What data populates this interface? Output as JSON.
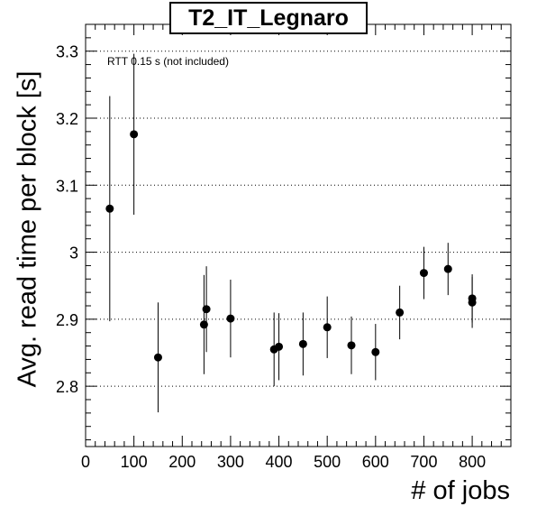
{
  "chart_data": {
    "type": "scatter",
    "title": "T2_IT_Legnaro",
    "xlabel": "# of jobs",
    "ylabel": "Avg. read time per block [s]",
    "annotation": "RTT 0.15 s (not included)",
    "xlim": [
      0,
      880
    ],
    "ylim": [
      2.71,
      3.34
    ],
    "xticks": [
      0,
      100,
      200,
      300,
      400,
      500,
      600,
      700,
      800
    ],
    "yticks": [
      2.8,
      2.9,
      3.0,
      3.1,
      3.2,
      3.3
    ],
    "ytick_labels": [
      "2.8",
      "2.9",
      "3",
      "3.1",
      "3.2",
      "3.3"
    ],
    "grid": "horizontal dotted",
    "marker_color": "#000000",
    "points": [
      {
        "x": 50,
        "y": 3.065,
        "yerr": 0.168
      },
      {
        "x": 100,
        "y": 3.176,
        "yerr": 0.12
      },
      {
        "x": 150,
        "y": 2.843,
        "yerr": 0.082
      },
      {
        "x": 245,
        "y": 2.892,
        "yerr": 0.074
      },
      {
        "x": 250,
        "y": 2.915,
        "yerr": 0.064
      },
      {
        "x": 300,
        "y": 2.901,
        "yerr": 0.058
      },
      {
        "x": 390,
        "y": 2.855,
        "yerr": 0.055
      },
      {
        "x": 400,
        "y": 2.859,
        "yerr": 0.05
      },
      {
        "x": 450,
        "y": 2.863,
        "yerr": 0.047
      },
      {
        "x": 500,
        "y": 2.888,
        "yerr": 0.046
      },
      {
        "x": 550,
        "y": 2.861,
        "yerr": 0.043
      },
      {
        "x": 600,
        "y": 2.851,
        "yerr": 0.042
      },
      {
        "x": 650,
        "y": 2.91,
        "yerr": 0.04
      },
      {
        "x": 700,
        "y": 2.969,
        "yerr": 0.039
      },
      {
        "x": 750,
        "y": 2.975,
        "yerr": 0.039
      },
      {
        "x": 800,
        "y": 2.925,
        "yerr": 0.038
      },
      {
        "x": 800,
        "y": 2.931,
        "yerr": 0.036
      }
    ]
  }
}
